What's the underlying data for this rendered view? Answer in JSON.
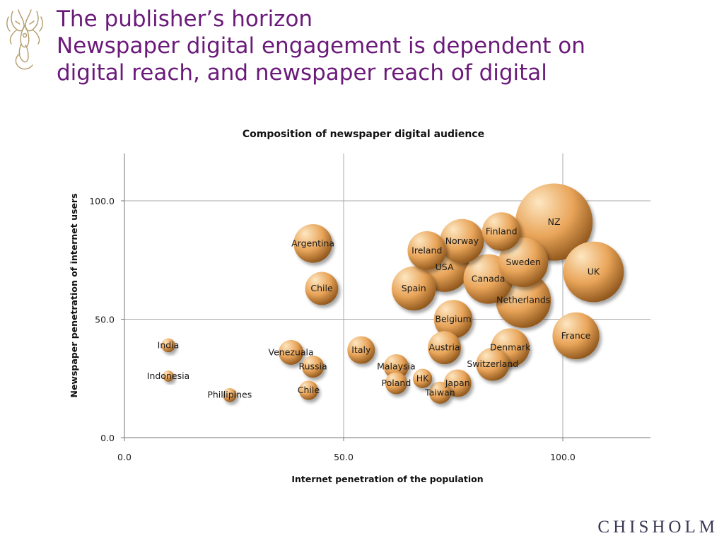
{
  "slide": {
    "title_lines": [
      "The publisher’s horizon",
      "Newspaper digital engagement is dependent on",
      "digital reach, and newspaper reach of digital"
    ],
    "brand": "CHISHOLM",
    "logo_icon": "dragon-crest-logo-icon"
  },
  "colors": {
    "title": "#6b1a7a",
    "bubble_light": "#fde7c2",
    "bubble_mid": "#e9a55a",
    "bubble_dark": "#8a5218",
    "grid": "#a8a8a8",
    "brand": "#3b3a55"
  },
  "chart_data": {
    "type": "scatter",
    "title": "Composition of newspaper digital audience",
    "xlabel": "Internet penetration of the population",
    "ylabel": "Newspaper penetration of internet users",
    "xlim": [
      0,
      120
    ],
    "ylim": [
      0,
      120
    ],
    "xticks": [
      0,
      50,
      100
    ],
    "yticks": [
      0,
      50,
      100
    ],
    "tick_labels_x": [
      "0.0",
      "50.0",
      "100.0"
    ],
    "tick_labels_y": [
      "0.0",
      "50.0",
      "100.0"
    ],
    "grid": true,
    "legend": "none",
    "points": [
      {
        "label": "India",
        "x": 10,
        "y": 39,
        "size": 2.5
      },
      {
        "label": "Indonesia",
        "x": 10,
        "y": 26,
        "size": 2.0
      },
      {
        "label": "Phillipines",
        "x": 24,
        "y": 18,
        "size": 2.5
      },
      {
        "label": "Venezuala",
        "x": 38,
        "y": 36,
        "size": 4.5
      },
      {
        "label": "Russia",
        "x": 43,
        "y": 30,
        "size": 4.0
      },
      {
        "label": "Chile",
        "x": 42,
        "y": 20,
        "size": 3.5
      },
      {
        "label": "Argentina",
        "x": 43,
        "y": 82,
        "size": 7.0
      },
      {
        "label": "Chile",
        "x": 45,
        "y": 63,
        "size": 6.0
      },
      {
        "label": "Italy",
        "x": 54,
        "y": 37,
        "size": 5.0
      },
      {
        "label": "Malaysia",
        "x": 62,
        "y": 30,
        "size": 4.5
      },
      {
        "label": "Poland",
        "x": 62,
        "y": 23,
        "size": 4.0
      },
      {
        "label": "HK",
        "x": 68,
        "y": 25,
        "size": 3.5
      },
      {
        "label": "Taiwan",
        "x": 72,
        "y": 19,
        "size": 4.0
      },
      {
        "label": "Japan",
        "x": 76,
        "y": 23,
        "size": 5.0
      },
      {
        "label": "Austria",
        "x": 73,
        "y": 38,
        "size": 6.0
      },
      {
        "label": "Switzerland",
        "x": 84,
        "y": 31,
        "size": 6.0
      },
      {
        "label": "Denmark",
        "x": 88,
        "y": 38,
        "size": 7.0
      },
      {
        "label": "Belgium",
        "x": 75,
        "y": 50,
        "size": 7.0
      },
      {
        "label": "Spain",
        "x": 66,
        "y": 63,
        "size": 8.0
      },
      {
        "label": "Ireland",
        "x": 69,
        "y": 79,
        "size": 7.0
      },
      {
        "label": "Norway",
        "x": 77,
        "y": 83,
        "size": 8.0
      },
      {
        "label": "USA",
        "x": 73,
        "y": 72,
        "size": 9.0
      },
      {
        "label": "Finland",
        "x": 86,
        "y": 87,
        "size": 7.0
      },
      {
        "label": "Canada",
        "x": 83,
        "y": 67,
        "size": 9.0
      },
      {
        "label": "Sweden",
        "x": 91,
        "y": 74,
        "size": 9.0
      },
      {
        "label": "Netherlands",
        "x": 91,
        "y": 58,
        "size": 10.0
      },
      {
        "label": "France",
        "x": 103,
        "y": 43,
        "size": 8.5
      },
      {
        "label": "NZ",
        "x": 98,
        "y": 91,
        "size": 14.0
      },
      {
        "label": "UK",
        "x": 107,
        "y": 70,
        "size": 11.0
      }
    ]
  }
}
